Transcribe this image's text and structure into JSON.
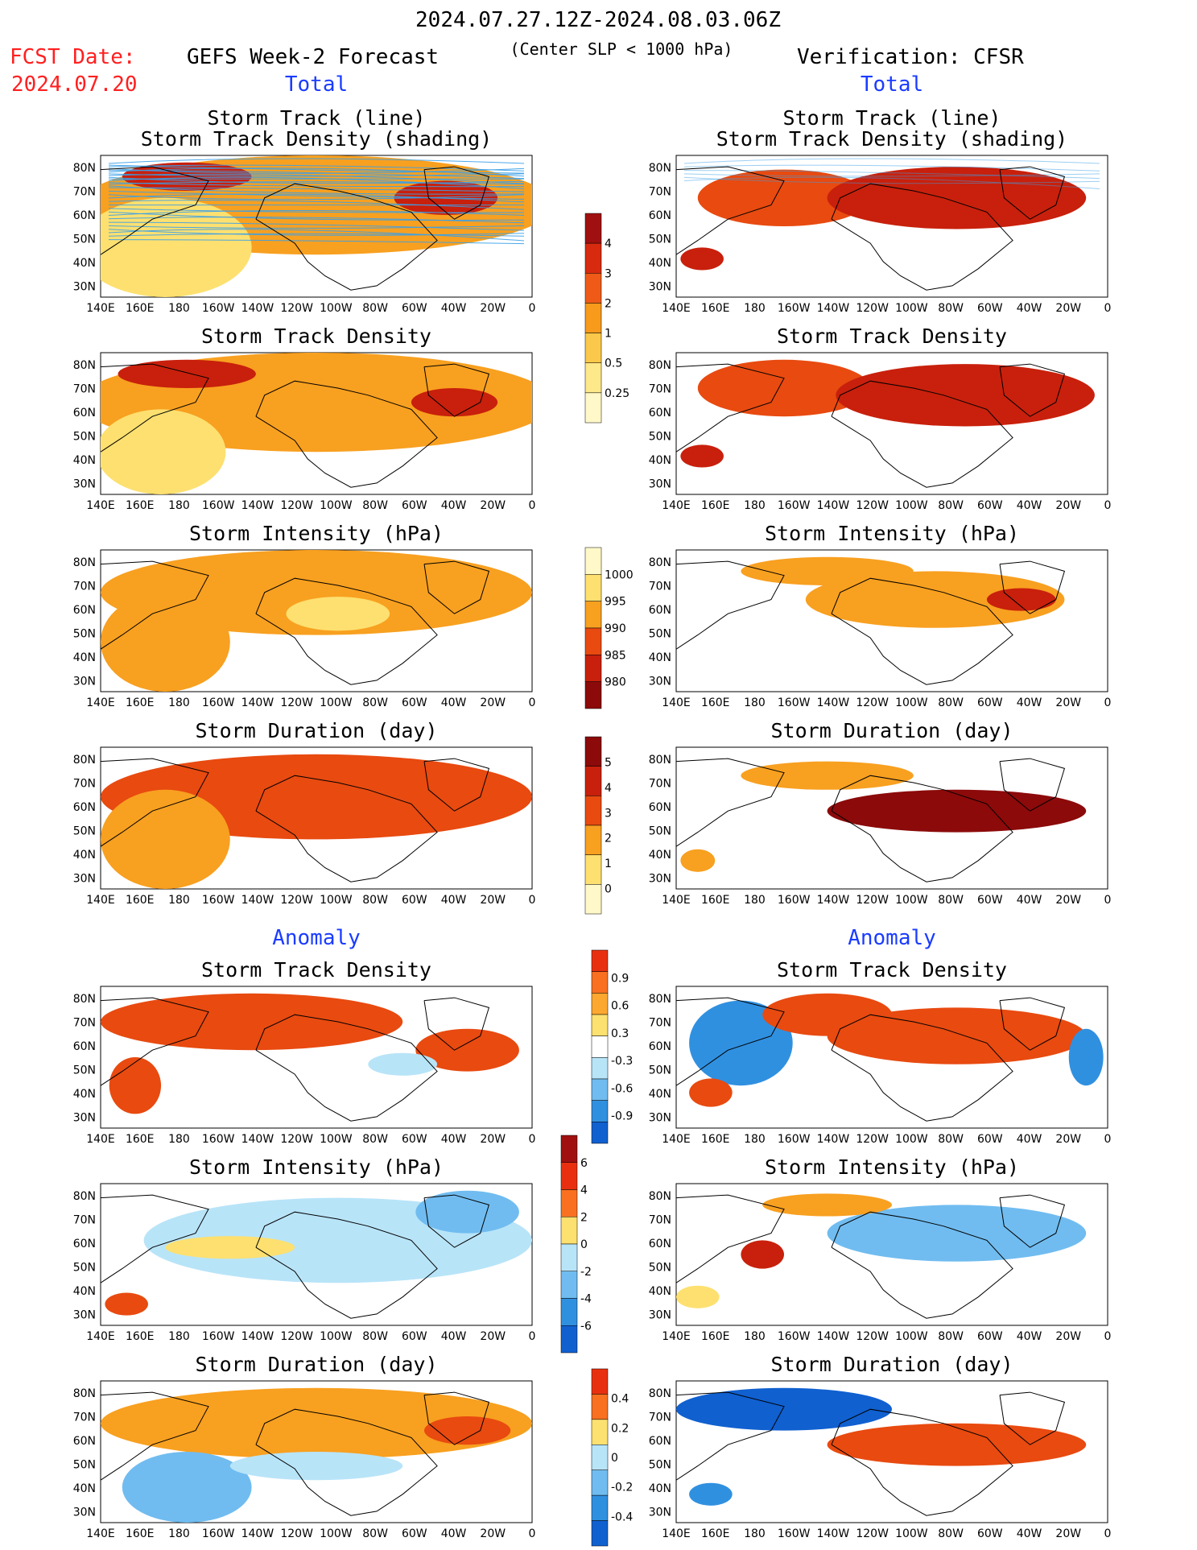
{
  "header": {
    "date_range": "2024.07.27.12Z-2024.08.03.06Z",
    "fcst_label": "FCST Date:",
    "fcst_date": "2024.07.20",
    "left_title": "GEFS Week-2 Forecast",
    "subtitle": "(Center SLP < 1000 hPa)",
    "right_title": "Verification: CFSR"
  },
  "sections": {
    "total": "Total",
    "anomaly": "Anomaly"
  },
  "panel_titles": {
    "track_line": "Storm Track (line)",
    "track_shading": "Storm Track Density (shading)",
    "density": "Storm Track Density",
    "intensity": "Storm Intensity (hPa)",
    "duration": "Storm Duration (day)"
  },
  "axes": {
    "lat": [
      "80N",
      "70N",
      "60N",
      "50N",
      "40N",
      "30N"
    ],
    "lon": [
      "140E",
      "160E",
      "180",
      "160W",
      "140W",
      "120W",
      "100W",
      "80W",
      "60W",
      "40W",
      "20W",
      "0"
    ]
  },
  "colorbars": [
    {
      "id": "density_total",
      "labels": [
        "4",
        "3",
        "2",
        "1",
        "0.5",
        "0.25"
      ],
      "colors": [
        "#a01010",
        "#d82a0e",
        "#f05a18",
        "#f89a1c",
        "#fac84a",
        "#fde88a",
        "#fff8c8"
      ]
    },
    {
      "id": "intensity_total",
      "labels": [
        "1000",
        "995",
        "990",
        "985",
        "980"
      ],
      "colors": [
        "#fff8c8",
        "#fde070",
        "#f8a020",
        "#e84a10",
        "#c8200c",
        "#8c0a0a"
      ]
    },
    {
      "id": "duration_total",
      "labels": [
        "5",
        "4",
        "3",
        "2",
        "1",
        "0"
      ],
      "colors": [
        "#8c0a0a",
        "#c8200c",
        "#e84a10",
        "#f8a020",
        "#fde070",
        "#fff8c8"
      ]
    },
    {
      "id": "density_anom",
      "labels": [
        "0.9",
        "0.6",
        "0.3",
        "-0.3",
        "-0.6",
        "-0.9"
      ],
      "colors": [
        "#e83010",
        "#f87020",
        "#fca830",
        "#fce070",
        "#ffffff",
        "#b8e4f8",
        "#70bcf0",
        "#3090e0",
        "#1060d0"
      ]
    },
    {
      "id": "intensity_anom",
      "labels": [
        "6",
        "4",
        "2",
        "0",
        "-2",
        "-4",
        "-6"
      ],
      "colors": [
        "#a01010",
        "#e83010",
        "#f87020",
        "#fce070",
        "#b8e4f8",
        "#70bcf0",
        "#3090e0",
        "#1060d0"
      ]
    },
    {
      "id": "duration_anom",
      "labels": [
        "0.4",
        "0.2",
        "0",
        "-0.2",
        "-0.4"
      ],
      "colors": [
        "#e83010",
        "#f87020",
        "#fce070",
        "#b8e4f8",
        "#70bcf0",
        "#3090e0",
        "#1060d0"
      ]
    }
  ],
  "palette": {
    "land_line": "#000000",
    "track_line": "#3aa0e8",
    "warm": [
      "#fff8c8",
      "#fde070",
      "#f8a020",
      "#e84a10",
      "#c8200c",
      "#8c0a0a"
    ],
    "cool": [
      "#b8e4f8",
      "#70bcf0",
      "#3090e0",
      "#1060d0"
    ]
  }
}
